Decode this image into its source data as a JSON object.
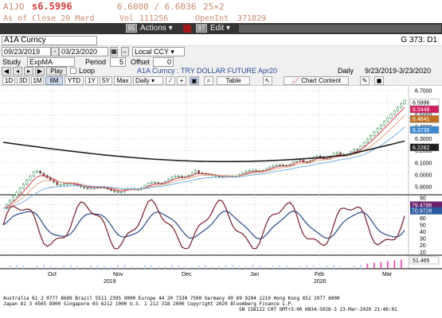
{
  "quote": {
    "ticker": "A1JO",
    "last": "s6.5996",
    "bid_ask": "6.6000 / 6.6036",
    "size": "25×2",
    "asof": "As of Close 20 Mard",
    "vol_label": "Vol",
    "vol_value": "111256",
    "openint_label": "OpenInt",
    "openint_value": "371829"
  },
  "toolbar": {
    "num_95": "95",
    "actions_label": "Actions",
    "num_97": "97",
    "edit_label": "Edit"
  },
  "security": {
    "name": "A1A Curncy",
    "gnum": "G 373: D1"
  },
  "dates": {
    "start": "09/23/2019",
    "end": "03/23/2020",
    "currency": "Local CCY"
  },
  "study": {
    "label": "Study",
    "value": "ExpMA",
    "period_label": "Period",
    "period_value": "5",
    "offset_label": "Offset",
    "offset_value": "0"
  },
  "controls": {
    "play": "Play",
    "loop": "Loop",
    "title": "A1A Curncy : TRY DOLLAR FUTURE Apr20",
    "freq": "Daily",
    "range": "9/23/2019-3/23/2020"
  },
  "periods": [
    "1D",
    "3D",
    "1M",
    "6M",
    "YTD",
    "1Y",
    "5Y",
    "Max"
  ],
  "active_period": "6M",
  "freq_select": "Daily",
  "table_label": "Table",
  "chart_content_label": "Chart Content",
  "chart_data": {
    "type": "line",
    "main_panel": {
      "title": "A1A Curncy : TRY DOLLAR FUTURE Apr20",
      "y_ticks": [
        "6.7000",
        "6.6000",
        "6.5000",
        "6.4000",
        "6.3000",
        "6.2000",
        "6.1000",
        "6.0000",
        "5.9000"
      ],
      "price_labels": [
        {
          "value": "6.5996",
          "color": "#ffffff",
          "bg": "#ffffff",
          "fg": "#000"
        },
        {
          "value": "6.5448",
          "color": "#ffffff",
          "bg": "#d02060",
          "fg": "#fff"
        },
        {
          "value": "6.4641",
          "color": "#ffffff",
          "bg": "#c07020",
          "fg": "#fff"
        },
        {
          "value": "6.3735",
          "color": "#ffffff",
          "bg": "#3a8ad0",
          "fg": "#fff"
        },
        {
          "value": "6.2282",
          "color": "#ffffff",
          "bg": "#202020",
          "fg": "#fff"
        }
      ],
      "series": [
        {
          "name": "candles",
          "color": "#2a9a5a"
        },
        {
          "name": "ema_fast",
          "color": "#d0243c"
        },
        {
          "name": "ema_mid",
          "color": "#e0a080"
        },
        {
          "name": "ema_slow",
          "color": "#6aa8e0"
        },
        {
          "name": "ema_long",
          "color": "#202020"
        }
      ]
    },
    "oscillator_panel": {
      "y_ticks": [
        "90",
        "80",
        "70",
        "60",
        "50",
        "40",
        "30",
        "20",
        "10"
      ],
      "labels": [
        {
          "value": "79.4786",
          "bg": "#6a1f6a",
          "fg": "#fff"
        },
        {
          "value": "70.9728",
          "bg": "#2a5aa0",
          "fg": "#fff"
        }
      ]
    },
    "volume_panel": {
      "label": "51.465"
    },
    "x_ticks": [
      "Oct",
      "Nov",
      "Dec",
      "Jan",
      "Feb",
      "Mar"
    ],
    "x_years": [
      "2019",
      "2020"
    ]
  },
  "footer": {
    "line1": "Australia 61 2 9777 8600 Brazil 5511 2395 9000 Europe 44 20 7330 7500 Germany 49 69 9204 1210 Hong Kong 852 2977 6000",
    "line2": "Japan 81 3 4565 8900    Singapore 65 6212 1000    U.S. 1 212 318 2000    Copyright 2020 Bloomberg Finance L.P.",
    "line3": "SN 158122 CHT GMT+3:00 H834-5026-3 23-Mar-2020 21:46:01"
  }
}
